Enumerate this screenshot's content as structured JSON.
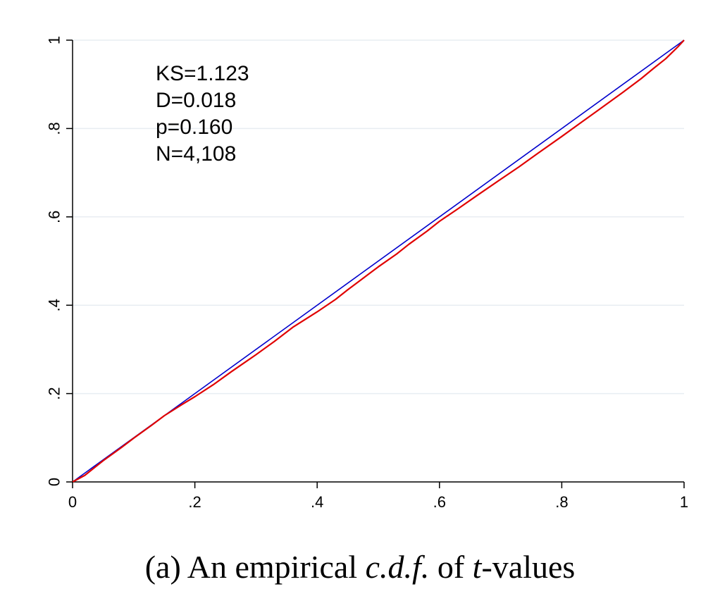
{
  "caption": {
    "prefix": "(a) An empirical ",
    "emph1": "c.d.f.",
    "middle": " of ",
    "emph2": "t",
    "suffix": "-values"
  },
  "chart_data": {
    "type": "line",
    "title": "",
    "xlabel": "",
    "ylabel": "",
    "xlim": [
      0,
      1
    ],
    "ylim": [
      0,
      1
    ],
    "grid": "horizontal",
    "x_ticks": [
      0,
      0.2,
      0.4,
      0.6,
      0.8,
      1
    ],
    "x_tick_labels": [
      "0",
      ".2",
      ".4",
      ".6",
      ".8",
      "1"
    ],
    "y_ticks": [
      0,
      0.2,
      0.4,
      0.6,
      0.8,
      1
    ],
    "y_tick_labels": [
      "0",
      ".2",
      ".4",
      ".6",
      ".8",
      "1"
    ],
    "annotations": [
      "KS=1.123",
      "D=0.018",
      "p=0.160",
      "N=4,108"
    ],
    "series": [
      {
        "color": "#0000cc",
        "x": [
          0,
          1
        ],
        "y": [
          0,
          1
        ]
      },
      {
        "color": "#e00000",
        "x": [
          0,
          0.02,
          0.05,
          0.08,
          0.1,
          0.13,
          0.15,
          0.18,
          0.2,
          0.23,
          0.26,
          0.3,
          0.33,
          0.36,
          0.4,
          0.43,
          0.45,
          0.48,
          0.5,
          0.53,
          0.55,
          0.58,
          0.6,
          0.63,
          0.66,
          0.7,
          0.73,
          0.76,
          0.8,
          0.83,
          0.86,
          0.9,
          0.93,
          0.95,
          0.97,
          0.99,
          1
        ],
        "y": [
          0,
          0.015,
          0.048,
          0.078,
          0.099,
          0.129,
          0.15,
          0.176,
          0.193,
          0.22,
          0.25,
          0.288,
          0.318,
          0.35,
          0.385,
          0.413,
          0.435,
          0.466,
          0.487,
          0.516,
          0.538,
          0.568,
          0.59,
          0.618,
          0.647,
          0.685,
          0.713,
          0.743,
          0.782,
          0.812,
          0.842,
          0.882,
          0.913,
          0.936,
          0.958,
          0.985,
          1
        ]
      }
    ]
  }
}
